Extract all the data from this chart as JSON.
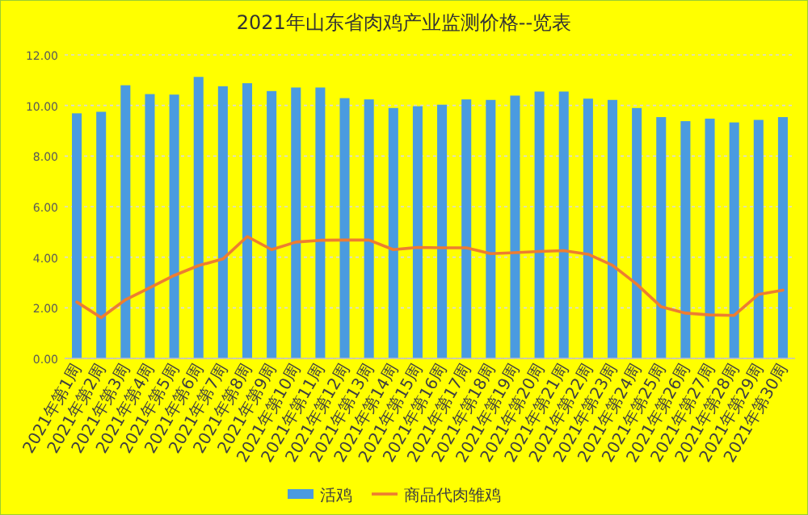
{
  "chart_data": {
    "type": "bar",
    "title": "2021年山东省肉鸡产业监测价格--览表",
    "categories": [
      "2021年第1周",
      "2021年第2周",
      "2021年第3周",
      "2021年第4周",
      "2021年第5周",
      "2021年第6周",
      "2021年第7周",
      "2021年第8周",
      "2021年第9周",
      "2021年第10周",
      "2021年第11周",
      "2021年第12周",
      "2021年第13周",
      "2021年第14周",
      "2021年第15周",
      "2021年第16周",
      "2021年第17周",
      "2021年第18周",
      "2021年第19周",
      "2021年第20周",
      "2021年第21周",
      "2021年第22周",
      "2021年第23周",
      "2021年第24周",
      "2021年第25周",
      "2021年第26周",
      "2021年第27周",
      "2021年第28周",
      "2021年第29周",
      "2021年第30周"
    ],
    "series": [
      {
        "name": "活鸡",
        "color": "#4a9be0",
        "values": [
          9.69,
          9.75,
          10.8,
          10.45,
          10.43,
          11.13,
          10.76,
          10.88,
          10.57,
          10.71,
          10.71,
          10.29,
          10.24,
          9.9,
          9.97,
          10.03,
          10.24,
          10.22,
          10.39,
          10.55,
          10.55,
          10.27,
          10.22,
          9.9,
          9.54,
          9.38,
          9.48,
          9.33,
          9.43,
          9.54
        ]
      },
      {
        "name": "商品代肉雏鸡",
        "type": "line",
        "color": "#ed7d31",
        "values": [
          2.23,
          1.61,
          2.32,
          2.8,
          3.28,
          3.67,
          3.93,
          4.82,
          4.3,
          4.6,
          4.67,
          4.68,
          4.68,
          4.3,
          4.39,
          4.37,
          4.37,
          4.14,
          4.18,
          4.23,
          4.26,
          4.12,
          3.68,
          2.93,
          2.04,
          1.79,
          1.72,
          1.7,
          2.53,
          2.7
        ]
      }
    ],
    "ylim": [
      0,
      12
    ],
    "yticks": [
      {
        "value": 0,
        "label": "0.00"
      },
      {
        "value": 2,
        "label": "2.00"
      },
      {
        "value": 4,
        "label": "4.00"
      },
      {
        "value": 6,
        "label": "6.00"
      },
      {
        "value": 8,
        "label": "8.00"
      },
      {
        "value": 10,
        "label": "10.00"
      },
      {
        "value": 12,
        "label": "12.00"
      }
    ],
    "grid": "y",
    "legend": "bottom",
    "marker": "none",
    "line_style": "solid"
  }
}
